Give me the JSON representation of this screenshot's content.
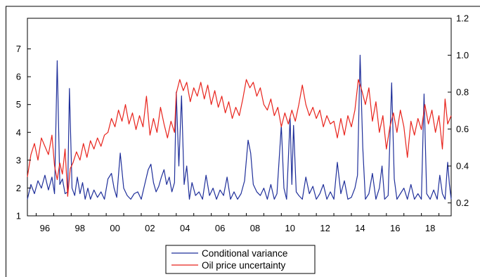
{
  "chart_data": {
    "type": "line",
    "title": "",
    "xlabel": "",
    "x_tick_labels": [
      "96",
      "98",
      "00",
      "02",
      "04",
      "06",
      "08",
      "10",
      "12",
      "14",
      "16",
      "18"
    ],
    "x_tick_years": [
      1996,
      1998,
      2000,
      2002,
      2004,
      2006,
      2008,
      2010,
      2012,
      2014,
      2016,
      2018
    ],
    "xlim": [
      1995.5,
      2019.7
    ],
    "left_axis": {
      "ticks": [
        1,
        2,
        3,
        4,
        5,
        6,
        7
      ],
      "ylim": [
        1,
        8.1
      ]
    },
    "right_axis": {
      "ticks": [
        "0.2",
        "0.4",
        "0.6",
        "0.8",
        "1.0",
        "1.2"
      ],
      "tick_values": [
        0.2,
        0.4,
        0.6,
        0.8,
        1.0,
        1.2
      ],
      "ylim": [
        0.13,
        1.2
      ]
    },
    "grid": false,
    "legend_position": "bottom-center",
    "series": [
      {
        "name": "Conditional variance",
        "axis": "right",
        "color": "#1f2f9a",
        "points": [
          [
            1995.5,
            0.22
          ],
          [
            1995.7,
            0.3
          ],
          [
            1995.9,
            0.25
          ],
          [
            1996.1,
            0.32
          ],
          [
            1996.3,
            0.28
          ],
          [
            1996.5,
            0.35
          ],
          [
            1996.7,
            0.27
          ],
          [
            1996.9,
            0.34
          ],
          [
            1997.05,
            0.25
          ],
          [
            1997.2,
            0.97
          ],
          [
            1997.35,
            0.3
          ],
          [
            1997.5,
            0.33
          ],
          [
            1997.65,
            0.25
          ],
          [
            1997.8,
            0.26
          ],
          [
            1997.9,
            0.82
          ],
          [
            1998.05,
            0.28
          ],
          [
            1998.2,
            0.24
          ],
          [
            1998.35,
            0.34
          ],
          [
            1998.5,
            0.25
          ],
          [
            1998.65,
            0.31
          ],
          [
            1998.8,
            0.22
          ],
          [
            1998.95,
            0.28
          ],
          [
            1999.1,
            0.22
          ],
          [
            1999.3,
            0.27
          ],
          [
            1999.5,
            0.23
          ],
          [
            1999.7,
            0.26
          ],
          [
            1999.9,
            0.22
          ],
          [
            2000.1,
            0.33
          ],
          [
            2000.3,
            0.36
          ],
          [
            2000.45,
            0.28
          ],
          [
            2000.6,
            0.23
          ],
          [
            2000.8,
            0.47
          ],
          [
            2001.0,
            0.28
          ],
          [
            2001.2,
            0.24
          ],
          [
            2001.4,
            0.22
          ],
          [
            2001.6,
            0.25
          ],
          [
            2001.8,
            0.26
          ],
          [
            2002.0,
            0.22
          ],
          [
            2002.2,
            0.3
          ],
          [
            2002.4,
            0.38
          ],
          [
            2002.55,
            0.41
          ],
          [
            2002.7,
            0.31
          ],
          [
            2002.85,
            0.26
          ],
          [
            2003.0,
            0.29
          ],
          [
            2003.15,
            0.34
          ],
          [
            2003.3,
            0.38
          ],
          [
            2003.45,
            0.3
          ],
          [
            2003.6,
            0.34
          ],
          [
            2003.75,
            0.26
          ],
          [
            2003.9,
            0.31
          ],
          [
            2004.0,
            0.8
          ],
          [
            2004.15,
            0.4
          ],
          [
            2004.3,
            0.78
          ],
          [
            2004.45,
            0.3
          ],
          [
            2004.6,
            0.4
          ],
          [
            2004.75,
            0.22
          ],
          [
            2004.9,
            0.31
          ],
          [
            2005.1,
            0.24
          ],
          [
            2005.3,
            0.26
          ],
          [
            2005.5,
            0.22
          ],
          [
            2005.7,
            0.35
          ],
          [
            2005.9,
            0.24
          ],
          [
            2006.1,
            0.28
          ],
          [
            2006.3,
            0.22
          ],
          [
            2006.5,
            0.27
          ],
          [
            2006.7,
            0.24
          ],
          [
            2006.9,
            0.34
          ],
          [
            2007.1,
            0.22
          ],
          [
            2007.3,
            0.26
          ],
          [
            2007.5,
            0.22
          ],
          [
            2007.7,
            0.25
          ],
          [
            2007.9,
            0.32
          ],
          [
            2008.1,
            0.54
          ],
          [
            2008.25,
            0.47
          ],
          [
            2008.4,
            0.3
          ],
          [
            2008.6,
            0.26
          ],
          [
            2008.8,
            0.24
          ],
          [
            2009.0,
            0.28
          ],
          [
            2009.2,
            0.22
          ],
          [
            2009.4,
            0.3
          ],
          [
            2009.6,
            0.22
          ],
          [
            2009.75,
            0.25
          ],
          [
            2010.0,
            0.62
          ],
          [
            2010.15,
            0.28
          ],
          [
            2010.3,
            0.22
          ],
          [
            2010.5,
            0.66
          ],
          [
            2010.6,
            0.3
          ],
          [
            2010.7,
            0.62
          ],
          [
            2010.85,
            0.26
          ],
          [
            2011.0,
            0.24
          ],
          [
            2011.2,
            0.22
          ],
          [
            2011.4,
            0.34
          ],
          [
            2011.6,
            0.25
          ],
          [
            2011.8,
            0.29
          ],
          [
            2012.0,
            0.22
          ],
          [
            2012.2,
            0.25
          ],
          [
            2012.4,
            0.3
          ],
          [
            2012.6,
            0.22
          ],
          [
            2012.8,
            0.26
          ],
          [
            2013.0,
            0.22
          ],
          [
            2013.2,
            0.42
          ],
          [
            2013.4,
            0.25
          ],
          [
            2013.6,
            0.32
          ],
          [
            2013.8,
            0.22
          ],
          [
            2014.0,
            0.23
          ],
          [
            2014.2,
            0.28
          ],
          [
            2014.35,
            0.35
          ],
          [
            2014.5,
            1.0
          ],
          [
            2014.65,
            0.5
          ],
          [
            2014.8,
            0.22
          ],
          [
            2015.0,
            0.25
          ],
          [
            2015.2,
            0.36
          ],
          [
            2015.4,
            0.22
          ],
          [
            2015.6,
            0.28
          ],
          [
            2015.75,
            0.4
          ],
          [
            2015.9,
            0.22
          ],
          [
            2016.1,
            0.24
          ],
          [
            2016.3,
            0.85
          ],
          [
            2016.45,
            0.33
          ],
          [
            2016.6,
            0.22
          ],
          [
            2016.8,
            0.25
          ],
          [
            2017.0,
            0.28
          ],
          [
            2017.2,
            0.22
          ],
          [
            2017.4,
            0.3
          ],
          [
            2017.6,
            0.22
          ],
          [
            2017.8,
            0.25
          ],
          [
            2018.0,
            0.22
          ],
          [
            2018.15,
            0.79
          ],
          [
            2018.3,
            0.25
          ],
          [
            2018.5,
            0.22
          ],
          [
            2018.7,
            0.27
          ],
          [
            2018.9,
            0.22
          ],
          [
            2019.05,
            0.35
          ],
          [
            2019.2,
            0.25
          ],
          [
            2019.35,
            0.22
          ],
          [
            2019.5,
            0.42
          ],
          [
            2019.6,
            0.3
          ],
          [
            2019.7,
            0.22
          ]
        ]
      },
      {
        "name": "Oil price uncertainty",
        "axis": "left",
        "color": "#e8231c",
        "points": [
          [
            1995.5,
            2.4
          ],
          [
            1995.7,
            3.2
          ],
          [
            1995.9,
            3.6
          ],
          [
            1996.1,
            3.0
          ],
          [
            1996.3,
            3.8
          ],
          [
            1996.5,
            3.5
          ],
          [
            1996.7,
            3.2
          ],
          [
            1996.9,
            3.9
          ],
          [
            1997.05,
            2.8
          ],
          [
            1997.2,
            2.3
          ],
          [
            1997.35,
            2.9
          ],
          [
            1997.5,
            2.5
          ],
          [
            1997.65,
            3.4
          ],
          [
            1997.8,
            1.7
          ],
          [
            1997.95,
            2.7
          ],
          [
            1998.1,
            2.9
          ],
          [
            1998.3,
            3.3
          ],
          [
            1998.5,
            3.0
          ],
          [
            1998.7,
            3.6
          ],
          [
            1998.9,
            3.1
          ],
          [
            1999.1,
            3.7
          ],
          [
            1999.3,
            3.4
          ],
          [
            1999.5,
            3.8
          ],
          [
            1999.7,
            3.5
          ],
          [
            1999.9,
            3.9
          ],
          [
            2000.1,
            4.0
          ],
          [
            2000.3,
            4.5
          ],
          [
            2000.5,
            4.2
          ],
          [
            2000.7,
            4.8
          ],
          [
            2000.9,
            4.4
          ],
          [
            2001.1,
            5.0
          ],
          [
            2001.3,
            4.3
          ],
          [
            2001.5,
            4.7
          ],
          [
            2001.7,
            4.1
          ],
          [
            2001.9,
            4.6
          ],
          [
            2002.1,
            4.2
          ],
          [
            2002.3,
            5.3
          ],
          [
            2002.5,
            3.9
          ],
          [
            2002.7,
            4.5
          ],
          [
            2002.9,
            4.0
          ],
          [
            2003.1,
            4.9
          ],
          [
            2003.3,
            4.3
          ],
          [
            2003.5,
            3.8
          ],
          [
            2003.7,
            4.4
          ],
          [
            2003.9,
            4.0
          ],
          [
            2004.0,
            5.4
          ],
          [
            2004.2,
            5.9
          ],
          [
            2004.4,
            5.5
          ],
          [
            2004.6,
            5.8
          ],
          [
            2004.8,
            5.1
          ],
          [
            2005.0,
            5.6
          ],
          [
            2005.2,
            5.3
          ],
          [
            2005.4,
            5.8
          ],
          [
            2005.6,
            5.2
          ],
          [
            2005.8,
            5.7
          ],
          [
            2006.0,
            5.0
          ],
          [
            2006.2,
            5.5
          ],
          [
            2006.4,
            4.9
          ],
          [
            2006.6,
            5.3
          ],
          [
            2006.8,
            4.7
          ],
          [
            2007.0,
            5.1
          ],
          [
            2007.2,
            4.5
          ],
          [
            2007.4,
            4.9
          ],
          [
            2007.6,
            4.6
          ],
          [
            2007.8,
            5.2
          ],
          [
            2008.0,
            5.9
          ],
          [
            2008.2,
            5.6
          ],
          [
            2008.4,
            5.8
          ],
          [
            2008.6,
            5.3
          ],
          [
            2008.8,
            5.6
          ],
          [
            2009.0,
            5.0
          ],
          [
            2009.2,
            4.8
          ],
          [
            2009.4,
            5.2
          ],
          [
            2009.6,
            4.6
          ],
          [
            2009.8,
            4.9
          ],
          [
            2010.0,
            4.2
          ],
          [
            2010.2,
            4.7
          ],
          [
            2010.4,
            4.3
          ],
          [
            2010.6,
            4.8
          ],
          [
            2010.8,
            4.4
          ],
          [
            2011.0,
            5.0
          ],
          [
            2011.2,
            5.7
          ],
          [
            2011.4,
            5.0
          ],
          [
            2011.6,
            4.6
          ],
          [
            2011.8,
            4.9
          ],
          [
            2012.0,
            4.5
          ],
          [
            2012.2,
            4.8
          ],
          [
            2012.4,
            4.2
          ],
          [
            2012.6,
            4.6
          ],
          [
            2012.8,
            4.3
          ],
          [
            2013.0,
            4.4
          ],
          [
            2013.2,
            3.8
          ],
          [
            2013.4,
            4.5
          ],
          [
            2013.6,
            3.9
          ],
          [
            2013.8,
            4.6
          ],
          [
            2014.0,
            4.2
          ],
          [
            2014.2,
            4.8
          ],
          [
            2014.4,
            5.9
          ],
          [
            2014.6,
            5.5
          ],
          [
            2014.8,
            5.0
          ],
          [
            2015.0,
            5.6
          ],
          [
            2015.2,
            4.4
          ],
          [
            2015.4,
            5.1
          ],
          [
            2015.6,
            4.0
          ],
          [
            2015.8,
            4.6
          ],
          [
            2016.0,
            3.4
          ],
          [
            2016.2,
            4.2
          ],
          [
            2016.4,
            4.7
          ],
          [
            2016.6,
            4.0
          ],
          [
            2016.8,
            4.8
          ],
          [
            2017.0,
            4.2
          ],
          [
            2017.2,
            3.1
          ],
          [
            2017.4,
            4.4
          ],
          [
            2017.6,
            3.9
          ],
          [
            2017.8,
            4.5
          ],
          [
            2018.0,
            4.1
          ],
          [
            2018.2,
            5.0
          ],
          [
            2018.4,
            4.3
          ],
          [
            2018.6,
            4.8
          ],
          [
            2018.8,
            4.0
          ],
          [
            2019.0,
            4.6
          ],
          [
            2019.2,
            3.4
          ],
          [
            2019.35,
            5.2
          ],
          [
            2019.5,
            4.3
          ],
          [
            2019.7,
            4.6
          ]
        ]
      }
    ]
  }
}
